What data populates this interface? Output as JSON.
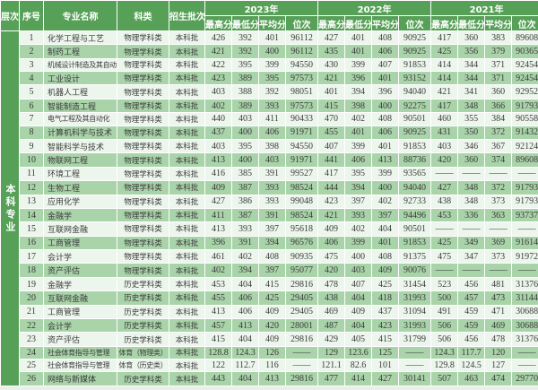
{
  "chart_data": {
    "type": "table",
    "title": "",
    "header": {
      "level": "层次",
      "index": "序号",
      "major": "专业名称",
      "category": "科类",
      "batch": "招生批次"
    },
    "year_groups": [
      "2023年",
      "2022年",
      "2021年"
    ],
    "sub_headers": [
      "最高分",
      "最低分",
      "平均分",
      "位次"
    ],
    "level_label": "本科专业",
    "rows": [
      {
        "no": "1",
        "major": "化学工程与工艺",
        "category": "物理学科类",
        "batch": "本科批",
        "scores": [
          [
            "426",
            "392",
            "401",
            "96112"
          ],
          [
            "427",
            "401",
            "408",
            "90925"
          ],
          [
            "417",
            "360",
            "383",
            "89608"
          ]
        ]
      },
      {
        "no": "2",
        "major": "制药工程",
        "category": "物理学科类",
        "batch": "本科批",
        "scores": [
          [
            "421",
            "392",
            "400",
            "96112"
          ],
          [
            "435",
            "401",
            "406",
            "90925"
          ],
          [
            "425",
            "356",
            "379",
            "90365"
          ]
        ]
      },
      {
        "no": "3",
        "major": "机械设计制造及其自动化",
        "category": "物理学科类",
        "batch": "本科批",
        "scores": [
          [
            "422",
            "395",
            "399",
            "94550"
          ],
          [
            "430",
            "399",
            "407",
            "91853"
          ],
          [
            "414",
            "344",
            "371",
            "92454"
          ]
        ]
      },
      {
        "no": "4",
        "major": "工业设计",
        "category": "物理学科类",
        "batch": "本科批",
        "scores": [
          [
            "423",
            "389",
            "395",
            "97573"
          ],
          [
            "421",
            "396",
            "401",
            "93152"
          ],
          [
            "414",
            "344",
            "371",
            "92454"
          ]
        ]
      },
      {
        "no": "5",
        "major": "机器人工程",
        "category": "物理学科类",
        "batch": "本科批",
        "scores": [
          [
            "403",
            "388",
            "392",
            "98051"
          ],
          [
            "401",
            "394",
            "396",
            "94040"
          ],
          [
            "421",
            "341",
            "360",
            "92952"
          ]
        ]
      },
      {
        "no": "6",
        "major": "智能制造工程",
        "category": "物理学科类",
        "batch": "本科批",
        "scores": [
          [
            "402",
            "389",
            "393",
            "97573"
          ],
          [
            "415",
            "398",
            "400",
            "92275"
          ],
          [
            "417",
            "348",
            "366",
            "91793"
          ]
        ]
      },
      {
        "no": "7",
        "major": "电气工程及其自动化",
        "category": "物理学科类",
        "batch": "本科批",
        "scores": [
          [
            "440",
            "403",
            "411",
            "90433"
          ],
          [
            "470",
            "402",
            "408",
            "90501"
          ],
          [
            "460",
            "355",
            "384",
            "90558"
          ]
        ]
      },
      {
        "no": "8",
        "major": "计算机科学与技术",
        "category": "物理学科类",
        "batch": "本科批",
        "scores": [
          [
            "437",
            "400",
            "406",
            "91971"
          ],
          [
            "455",
            "401",
            "406",
            "90925"
          ],
          [
            "431",
            "350",
            "372",
            "91432"
          ]
        ]
      },
      {
        "no": "9",
        "major": "智能科学与技术",
        "category": "物理学科类",
        "batch": "本科批",
        "scores": [
          [
            "403",
            "395",
            "398",
            "94550"
          ],
          [
            "407",
            "399",
            "401",
            "91853"
          ],
          [
            "403",
            "346",
            "367",
            "92124"
          ]
        ]
      },
      {
        "no": "10",
        "major": "物联网工程",
        "category": "物理学科类",
        "batch": "本科批",
        "scores": [
          [
            "413",
            "400",
            "403",
            "91971"
          ],
          [
            "441",
            "406",
            "413",
            "88736"
          ],
          [
            "420",
            "360",
            "374",
            "89608"
          ]
        ]
      },
      {
        "no": "11",
        "major": "环境工程",
        "category": "物理学科类",
        "batch": "本科批",
        "scores": [
          [
            "416",
            "385",
            "391",
            "99527"
          ],
          [
            "417",
            "395",
            "399",
            "93565"
          ],
          [
            "——",
            "——",
            "——",
            "——"
          ]
        ]
      },
      {
        "no": "12",
        "major": "生物工程",
        "category": "物理学科类",
        "batch": "本科批",
        "scores": [
          [
            "409",
            "387",
            "393",
            "98524"
          ],
          [
            "444",
            "394",
            "400",
            "94040"
          ],
          [
            "427",
            "348",
            "372",
            "91793"
          ]
        ]
      },
      {
        "no": "13",
        "major": "应用化学",
        "category": "物理学科类",
        "batch": "本科批",
        "scores": [
          [
            "427",
            "386",
            "393",
            "99048"
          ],
          [
            "423",
            "397",
            "402",
            "92733"
          ],
          [
            "438",
            "348",
            "373",
            "91793"
          ]
        ]
      },
      {
        "no": "14",
        "major": "金融学",
        "category": "物理学科类",
        "batch": "本科批",
        "scores": [
          [
            "411",
            "387",
            "391",
            "98524"
          ],
          [
            "421",
            "393",
            "397",
            "94496"
          ],
          [
            "453",
            "336",
            "363",
            "93737"
          ]
        ]
      },
      {
        "no": "15",
        "major": "互联网金融",
        "category": "物理学科类",
        "batch": "本科批",
        "scores": [
          [
            "413",
            "393",
            "397",
            "95618"
          ],
          [
            "409",
            "402",
            "404",
            "90501"
          ],
          [
            "——",
            "——",
            "——",
            "——"
          ]
        ]
      },
      {
        "no": "16",
        "major": "工商管理",
        "category": "物理学科类",
        "batch": "本科批",
        "scores": [
          [
            "396",
            "391",
            "394",
            "96576"
          ],
          [
            "406",
            "399",
            "401",
            "91853"
          ],
          [
            "425",
            "349",
            "369",
            "91614"
          ]
        ]
      },
      {
        "no": "17",
        "major": "会计学",
        "category": "物理学科类",
        "batch": "本科批",
        "scores": [
          [
            "461",
            "402",
            "408",
            "90935"
          ],
          [
            "475",
            "400",
            "408",
            "91375"
          ],
          [
            "475",
            "347",
            "373",
            "91972"
          ]
        ]
      },
      {
        "no": "18",
        "major": "资产评估",
        "category": "物理学科类",
        "batch": "本科批",
        "scores": [
          [
            "402",
            "394",
            "397",
            "95077"
          ],
          [
            "420",
            "403",
            "409",
            "90076"
          ],
          [
            "——",
            "——",
            "——",
            "——"
          ]
        ]
      },
      {
        "no": "19",
        "major": "金融学",
        "category": "历史学科类",
        "batch": "本科批",
        "scores": [
          [
            "453",
            "404",
            "415",
            "29816"
          ],
          [
            "478",
            "407",
            "425",
            "31454"
          ],
          [
            "523",
            "456",
            "481",
            "31376"
          ]
        ]
      },
      {
        "no": "20",
        "major": "互联网金融",
        "category": "历史学科类",
        "batch": "本科批",
        "scores": [
          [
            "455",
            "406",
            "425",
            "29405"
          ],
          [
            "438",
            "404",
            "418",
            "31993"
          ],
          [
            "500",
            "457",
            "473",
            "31144"
          ]
        ]
      },
      {
        "no": "21",
        "major": "工商管理",
        "category": "历史学科类",
        "batch": "本科批",
        "scores": [
          [
            "413",
            "406",
            "409",
            "29405"
          ],
          [
            "469",
            "409",
            "437",
            "31094"
          ],
          [
            "491",
            "459",
            "471",
            "30688"
          ]
        ]
      },
      {
        "no": "22",
        "major": "会计学",
        "category": "历史学科类",
        "batch": "本科批",
        "scores": [
          [
            "457",
            "413",
            "420",
            "28001"
          ],
          [
            "487",
            "404",
            "423",
            "31993"
          ],
          [
            "506",
            "459",
            "469",
            "30688"
          ]
        ]
      },
      {
        "no": "23",
        "major": "资产评估",
        "category": "历史学科类",
        "batch": "本科批",
        "scores": [
          [
            "415",
            "404",
            "409",
            "29816"
          ],
          [
            "429",
            "405",
            "415",
            "31799"
          ],
          [
            "506",
            "456",
            "478",
            "31376"
          ]
        ]
      },
      {
        "no": "24",
        "major": "社会体育指导与管理",
        "category": "体育（物理类）",
        "batch": "本科批",
        "scores": [
          [
            "128.8",
            "124.3",
            "126",
            "——"
          ],
          [
            "129",
            "123.6",
            "125",
            "——"
          ],
          [
            "124.3",
            "117.7",
            "120",
            "——"
          ]
        ]
      },
      {
        "no": "25",
        "major": "社会体育指导与管理",
        "category": "体育（历史类）",
        "batch": "本科批",
        "scores": [
          [
            "122",
            "112.7",
            "116",
            "——"
          ],
          [
            "121.1",
            "82.6",
            "101",
            "——"
          ],
          [
            "129.8",
            "124.5",
            "127",
            "——"
          ]
        ]
      },
      {
        "no": "26",
        "major": "网络与新媒体",
        "category": "历史学科类",
        "batch": "本科批",
        "scores": [
          [
            "443",
            "404",
            "413",
            "29816"
          ],
          [
            "477",
            "414",
            "427",
            "30141"
          ],
          [
            "507",
            "463",
            "474",
            "29770"
          ]
        ]
      }
    ],
    "colors": {
      "header_green": "#57a057",
      "row_green": "#a9d3a9",
      "row_light": "#edf6ed",
      "grid_line": "#ffffff",
      "text": "#3a3a3a"
    },
    "layout": {
      "grid": "on",
      "alternating_rows": true,
      "legend_position": "none"
    }
  }
}
